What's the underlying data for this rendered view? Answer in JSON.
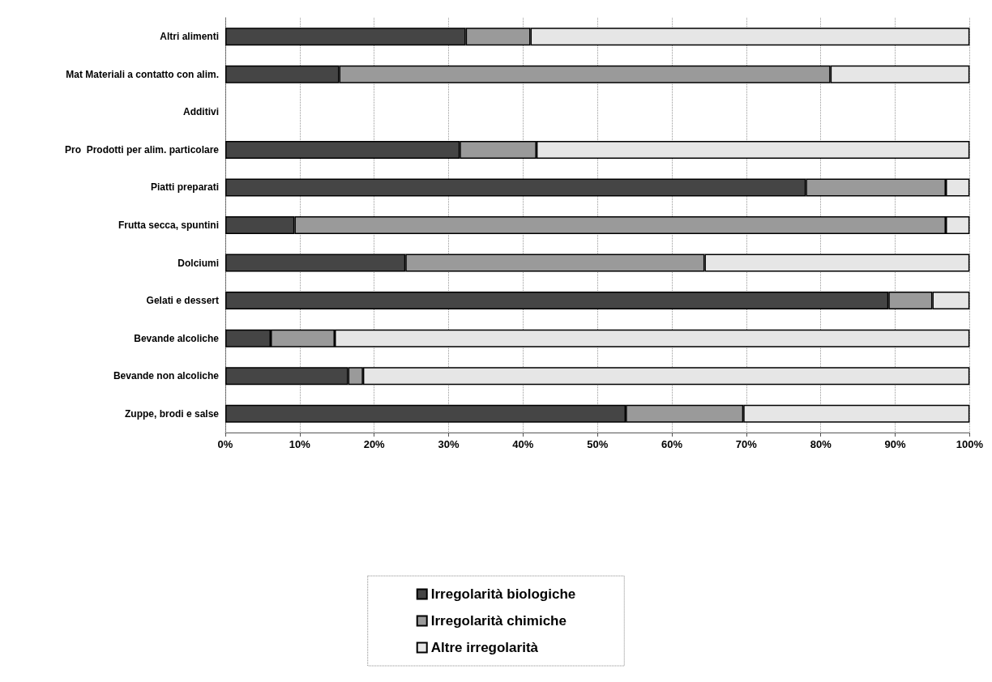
{
  "chart_data": {
    "type": "bar",
    "orientation": "horizontal",
    "stacked": true,
    "categories": [
      "Altri alimenti",
      "Mat Materiali a contatto con alim.",
      "Additivi",
      "Pro  Prodotti per alim. particolare",
      "Piatti preparati",
      "Frutta secca, spuntini",
      "Dolciumi",
      "Gelati e dessert",
      "Bevande alcoliche",
      "Bevande non alcoliche",
      "Zuppe, brodi e salse"
    ],
    "series": [
      {
        "name": "Irregolarità biologiche",
        "color": "#454545",
        "values": [
          32.3,
          15.3,
          null,
          31.5,
          78,
          9.3,
          24.2,
          89.1,
          6.1,
          16.5,
          53.8
        ]
      },
      {
        "name": "Irregolarità chimiche",
        "color": "#9a9a9a",
        "values": [
          8.7,
          66,
          null,
          10.3,
          18.8,
          87.5,
          40.2,
          5.9,
          8.6,
          2,
          15.8
        ]
      },
      {
        "name": "Altre irregolarità",
        "color": "#e6e6e6",
        "values": [
          59,
          18.7,
          null,
          58.2,
          3.2,
          3.2,
          35.6,
          5,
          85.3,
          81.5,
          30.4
        ]
      }
    ],
    "xlim": [
      0,
      100
    ],
    "xticks": [
      {
        "value": 0,
        "label": "0%"
      },
      {
        "value": 10,
        "label": "10%"
      },
      {
        "value": 20,
        "label": "20%"
      },
      {
        "value": 30,
        "label": "30%"
      },
      {
        "value": 40,
        "label": "40%"
      },
      {
        "value": 50,
        "label": "50%"
      },
      {
        "value": 60,
        "label": "60%"
      },
      {
        "value": 70,
        "label": "70%"
      },
      {
        "value": 80,
        "label": "80%"
      },
      {
        "value": 90,
        "label": "90%"
      },
      {
        "value": 100,
        "label": "100%"
      }
    ],
    "grid": "x",
    "legend": "bottom"
  }
}
